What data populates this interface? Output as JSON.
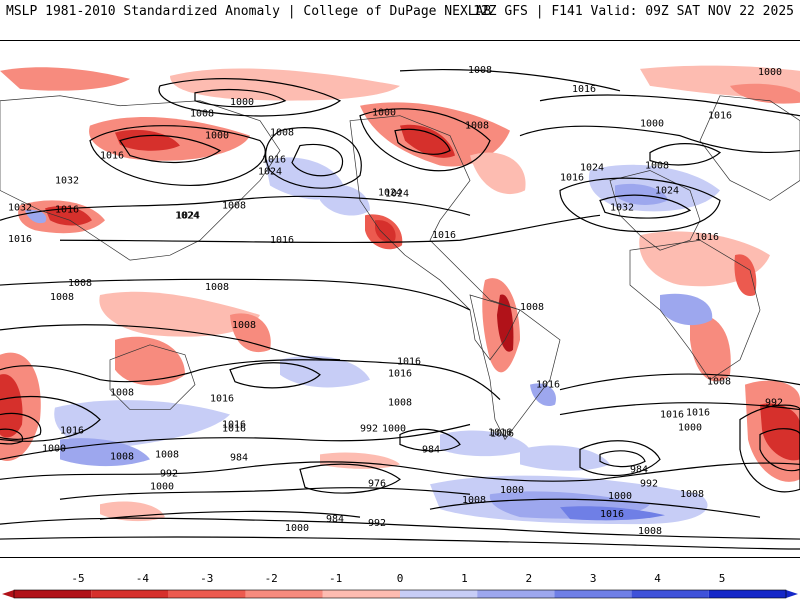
{
  "header": {
    "left": "MSLP 1981-2010 Standardized Anomaly | College of DuPage NEXLAB",
    "right": "12Z GFS | F141 Valid: 09Z SAT NOV 22 2025"
  },
  "colorbar": {
    "ticks": [
      "-5",
      "-4",
      "-3",
      "-2",
      "-1",
      "0",
      "1",
      "2",
      "3",
      "4",
      "5"
    ],
    "colors": [
      "#b11219",
      "#d6302c",
      "#ec5a4f",
      "#f78b7e",
      "#fdbcb1",
      "#ffffff",
      "#c7cdf6",
      "#9da7ee",
      "#6f7fe6",
      "#3f52d9",
      "#1528c8"
    ]
  },
  "isobar_labels": [
    "1008",
    "1000",
    "1008",
    "1000",
    "1008",
    "1000",
    "1016",
    "1016",
    "1000",
    "1008",
    "1016",
    "1000",
    "1016",
    "1024",
    "1032",
    "1008",
    "1016",
    "1024",
    "1016",
    "1024",
    "1016",
    "1008",
    "1024",
    "1016",
    "1032",
    "1008",
    "1016",
    "1024",
    "1032",
    "1016",
    "1008",
    "1008",
    "1008",
    "1008",
    "1016",
    "1016",
    "1008",
    "1016",
    "1016",
    "1008",
    "1008",
    "1016",
    "1000",
    "1016",
    "1016",
    "1016",
    "992",
    "1000",
    "1016",
    "1016",
    "1016",
    "992",
    "1008",
    "992",
    "984",
    "984",
    "976",
    "984",
    "992",
    "1000",
    "1008",
    "1000",
    "992",
    "1000",
    "1008",
    "1000",
    "1016",
    "1008",
    "1000",
    "984",
    "1008",
    "1024",
    "1024"
  ]
}
